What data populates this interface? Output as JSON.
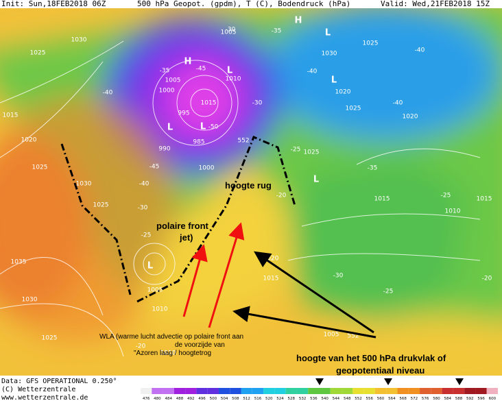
{
  "header": {
    "init": "Init: Sun,18FEB2018 06Z",
    "field": "500 hPa Geopot. (gpdm), T (C), Bodendruck (hPa)",
    "valid": "Valid: Wed,21FEB2018 15Z"
  },
  "map": {
    "labels": [
      "1005",
      "1030",
      "1025",
      "-30",
      "-35",
      "1025",
      "-40",
      "1030",
      "-40",
      "1020",
      "1025",
      "-40",
      "1020",
      "1010",
      "1015",
      "1000",
      "1005",
      "995",
      "990",
      "985",
      "-35",
      "-45",
      "-50",
      "-30",
      "-40",
      "1015",
      "1020",
      "1025",
      "1030",
      "1025",
      "-45",
      "-40",
      "1000",
      "-35",
      "1025",
      "-25",
      "1015",
      "1015",
      "1010",
      "-25",
      "-20",
      "-25",
      "-30",
      "1035",
      "1030",
      "1020",
      "1015",
      "-30",
      "-25",
      "-20",
      "1005",
      "1010",
      "1025",
      "1005",
      "552",
      "552",
      "-20",
      "1010"
    ],
    "centers": [
      "H",
      "H",
      "L",
      "L",
      "L",
      "L",
      "L",
      "L",
      "L"
    ]
  },
  "annotations": {
    "ridge": "hoogte rug",
    "front": [
      "polaire front",
      "jet)"
    ],
    "wla": [
      "WLA (warme lucht advectie op polaire front aan",
      "de voorzijde van",
      "\"Azoren laag / hoogtetrog"
    ],
    "height": [
      "hoogte van het  500 hPa drukvlak of",
      "geopotentiaal niveau"
    ]
  },
  "footer": {
    "data": "Data: GFS OPERATIONAL 0.250°",
    "copyright": "(C) Wetterzentrale",
    "url": "www.wetterzentrale.de"
  },
  "colorbar": [
    476,
    480,
    484,
    488,
    492,
    496,
    500,
    504,
    508,
    512,
    516,
    520,
    524,
    528,
    532,
    536,
    540,
    544,
    548,
    552,
    556,
    560,
    564,
    568,
    572,
    576,
    580,
    584,
    588,
    592,
    596,
    600
  ]
}
